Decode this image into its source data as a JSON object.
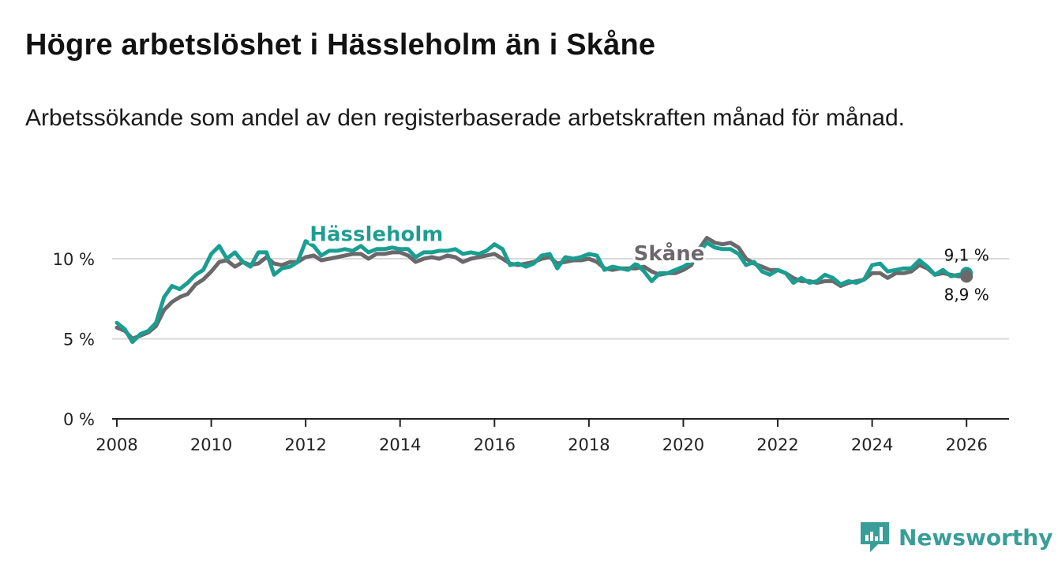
{
  "title": "Högre arbetslöshet i Hässleholm än i Skåne",
  "subtitle": "Arbetssökande som andel av den registerbaserade arbetskraften månad för månad.",
  "brand": {
    "name": "Newsworthy",
    "icon": "newsworthy-logo-icon",
    "color": "#3a9e98"
  },
  "chart_data": {
    "type": "line",
    "title": "Högre arbetslöshet i Hässleholm än i Skåne",
    "xlabel": "",
    "ylabel": "",
    "xlim": [
      2007.9,
      2026.9
    ],
    "ylim": [
      0,
      10
    ],
    "grid": true,
    "x_ticks": [
      2008,
      2010,
      2012,
      2014,
      2016,
      2018,
      2020,
      2022,
      2024,
      2026
    ],
    "x_tick_labels": [
      "2008",
      "2010",
      "2012",
      "2014",
      "2016",
      "2018",
      "2020",
      "2022",
      "2024",
      "2026"
    ],
    "y_ticks": [
      0,
      5,
      10
    ],
    "y_tick_labels": [
      "0 %",
      "5 %",
      "10 %"
    ],
    "series": [
      {
        "name": "Skåne",
        "color": "#6b686b",
        "end_label": "8,9 %",
        "points": [
          [
            2008.0,
            5.7
          ],
          [
            2008.17,
            5.5
          ],
          [
            2008.33,
            5.0
          ],
          [
            2008.5,
            5.2
          ],
          [
            2008.67,
            5.4
          ],
          [
            2008.83,
            5.8
          ],
          [
            2009.0,
            6.8
          ],
          [
            2009.17,
            7.3
          ],
          [
            2009.33,
            7.6
          ],
          [
            2009.5,
            7.8
          ],
          [
            2009.67,
            8.4
          ],
          [
            2009.83,
            8.7
          ],
          [
            2010.0,
            9.2
          ],
          [
            2010.17,
            9.8
          ],
          [
            2010.33,
            9.9
          ],
          [
            2010.5,
            9.5
          ],
          [
            2010.67,
            9.8
          ],
          [
            2010.83,
            9.6
          ],
          [
            2011.0,
            9.7
          ],
          [
            2011.17,
            10.1
          ],
          [
            2011.33,
            9.7
          ],
          [
            2011.5,
            9.6
          ],
          [
            2011.67,
            9.8
          ],
          [
            2011.83,
            9.8
          ],
          [
            2012.0,
            10.1
          ],
          [
            2012.17,
            10.2
          ],
          [
            2012.33,
            9.9
          ],
          [
            2012.5,
            10.0
          ],
          [
            2012.67,
            10.1
          ],
          [
            2012.83,
            10.2
          ],
          [
            2013.0,
            10.3
          ],
          [
            2013.17,
            10.3
          ],
          [
            2013.33,
            10.0
          ],
          [
            2013.5,
            10.3
          ],
          [
            2013.67,
            10.3
          ],
          [
            2013.83,
            10.4
          ],
          [
            2014.0,
            10.4
          ],
          [
            2014.17,
            10.2
          ],
          [
            2014.33,
            9.8
          ],
          [
            2014.5,
            10.0
          ],
          [
            2014.67,
            10.1
          ],
          [
            2014.83,
            10.0
          ],
          [
            2015.0,
            10.2
          ],
          [
            2015.17,
            10.1
          ],
          [
            2015.33,
            9.8
          ],
          [
            2015.5,
            10.0
          ],
          [
            2015.67,
            10.1
          ],
          [
            2015.83,
            10.2
          ],
          [
            2016.0,
            10.3
          ],
          [
            2016.17,
            10.0
          ],
          [
            2016.33,
            9.7
          ],
          [
            2016.5,
            9.6
          ],
          [
            2016.67,
            9.7
          ],
          [
            2016.83,
            9.8
          ],
          [
            2017.0,
            10.0
          ],
          [
            2017.17,
            10.1
          ],
          [
            2017.33,
            9.7
          ],
          [
            2017.5,
            9.8
          ],
          [
            2017.67,
            9.9
          ],
          [
            2017.83,
            9.9
          ],
          [
            2018.0,
            10.0
          ],
          [
            2018.17,
            9.8
          ],
          [
            2018.33,
            9.4
          ],
          [
            2018.5,
            9.3
          ],
          [
            2018.67,
            9.4
          ],
          [
            2018.83,
            9.4
          ],
          [
            2019.0,
            9.4
          ],
          [
            2019.17,
            9.5
          ],
          [
            2019.33,
            9.2
          ],
          [
            2019.5,
            9.0
          ],
          [
            2019.67,
            9.1
          ],
          [
            2019.83,
            9.1
          ],
          [
            2020.0,
            9.3
          ],
          [
            2020.17,
            9.6
          ],
          [
            2020.33,
            10.6
          ],
          [
            2020.5,
            11.3
          ],
          [
            2020.67,
            11.0
          ],
          [
            2020.83,
            10.9
          ],
          [
            2021.0,
            11.0
          ],
          [
            2021.17,
            10.7
          ],
          [
            2021.33,
            10.0
          ],
          [
            2021.5,
            9.7
          ],
          [
            2021.67,
            9.5
          ],
          [
            2021.83,
            9.3
          ],
          [
            2022.0,
            9.3
          ],
          [
            2022.17,
            9.1
          ],
          [
            2022.33,
            8.8
          ],
          [
            2022.5,
            8.6
          ],
          [
            2022.67,
            8.6
          ],
          [
            2022.83,
            8.5
          ],
          [
            2023.0,
            8.6
          ],
          [
            2023.17,
            8.6
          ],
          [
            2023.33,
            8.3
          ],
          [
            2023.5,
            8.5
          ],
          [
            2023.67,
            8.6
          ],
          [
            2023.83,
            8.7
          ],
          [
            2024.0,
            9.1
          ],
          [
            2024.17,
            9.1
          ],
          [
            2024.33,
            8.8
          ],
          [
            2024.5,
            9.1
          ],
          [
            2024.67,
            9.1
          ],
          [
            2024.83,
            9.2
          ],
          [
            2025.0,
            9.6
          ],
          [
            2025.17,
            9.4
          ],
          [
            2025.33,
            9.0
          ],
          [
            2025.5,
            9.1
          ],
          [
            2025.67,
            9.0
          ],
          [
            2025.83,
            8.9
          ],
          [
            2026.0,
            8.9
          ]
        ]
      },
      {
        "name": "Hässleholm",
        "color": "#1a9e91",
        "end_label": "9,1 %",
        "points": [
          [
            2008.0,
            6.0
          ],
          [
            2008.17,
            5.6
          ],
          [
            2008.33,
            4.8
          ],
          [
            2008.5,
            5.3
          ],
          [
            2008.67,
            5.5
          ],
          [
            2008.83,
            6.0
          ],
          [
            2009.0,
            7.6
          ],
          [
            2009.17,
            8.3
          ],
          [
            2009.33,
            8.1
          ],
          [
            2009.5,
            8.5
          ],
          [
            2009.67,
            9.0
          ],
          [
            2009.83,
            9.3
          ],
          [
            2010.0,
            10.3
          ],
          [
            2010.17,
            10.8
          ],
          [
            2010.33,
            10.0
          ],
          [
            2010.5,
            10.4
          ],
          [
            2010.67,
            9.8
          ],
          [
            2010.83,
            9.5
          ],
          [
            2011.0,
            10.4
          ],
          [
            2011.17,
            10.4
          ],
          [
            2011.33,
            9.0
          ],
          [
            2011.5,
            9.4
          ],
          [
            2011.67,
            9.5
          ],
          [
            2011.83,
            9.8
          ],
          [
            2012.0,
            11.1
          ],
          [
            2012.17,
            10.8
          ],
          [
            2012.33,
            10.2
          ],
          [
            2012.5,
            10.5
          ],
          [
            2012.67,
            10.5
          ],
          [
            2012.83,
            10.6
          ],
          [
            2013.0,
            10.5
          ],
          [
            2013.17,
            10.8
          ],
          [
            2013.33,
            10.4
          ],
          [
            2013.5,
            10.6
          ],
          [
            2013.67,
            10.6
          ],
          [
            2013.83,
            10.7
          ],
          [
            2014.0,
            10.6
          ],
          [
            2014.17,
            10.6
          ],
          [
            2014.33,
            10.1
          ],
          [
            2014.5,
            10.4
          ],
          [
            2014.67,
            10.4
          ],
          [
            2014.83,
            10.5
          ],
          [
            2015.0,
            10.5
          ],
          [
            2015.17,
            10.6
          ],
          [
            2015.33,
            10.3
          ],
          [
            2015.5,
            10.4
          ],
          [
            2015.67,
            10.3
          ],
          [
            2015.83,
            10.5
          ],
          [
            2016.0,
            10.9
          ],
          [
            2016.17,
            10.6
          ],
          [
            2016.33,
            9.6
          ],
          [
            2016.5,
            9.7
          ],
          [
            2016.67,
            9.5
          ],
          [
            2016.83,
            9.7
          ],
          [
            2017.0,
            10.2
          ],
          [
            2017.17,
            10.3
          ],
          [
            2017.33,
            9.4
          ],
          [
            2017.5,
            10.1
          ],
          [
            2017.67,
            10.0
          ],
          [
            2017.83,
            10.1
          ],
          [
            2018.0,
            10.3
          ],
          [
            2018.17,
            10.2
          ],
          [
            2018.33,
            9.3
          ],
          [
            2018.5,
            9.5
          ],
          [
            2018.67,
            9.4
          ],
          [
            2018.83,
            9.3
          ],
          [
            2019.0,
            9.7
          ],
          [
            2019.17,
            9.2
          ],
          [
            2019.33,
            8.6
          ],
          [
            2019.5,
            9.1
          ],
          [
            2019.67,
            9.1
          ],
          [
            2019.83,
            9.3
          ],
          [
            2020.0,
            9.5
          ],
          [
            2020.17,
            9.8
          ],
          [
            2020.33,
            10.4
          ],
          [
            2020.5,
            11.0
          ],
          [
            2020.67,
            10.7
          ],
          [
            2020.83,
            10.6
          ],
          [
            2021.0,
            10.6
          ],
          [
            2021.17,
            10.3
          ],
          [
            2021.33,
            9.6
          ],
          [
            2021.5,
            9.8
          ],
          [
            2021.67,
            9.2
          ],
          [
            2021.83,
            9.0
          ],
          [
            2022.0,
            9.3
          ],
          [
            2022.17,
            9.1
          ],
          [
            2022.33,
            8.5
          ],
          [
            2022.5,
            8.8
          ],
          [
            2022.67,
            8.5
          ],
          [
            2022.83,
            8.6
          ],
          [
            2023.0,
            9.0
          ],
          [
            2023.17,
            8.8
          ],
          [
            2023.33,
            8.4
          ],
          [
            2023.5,
            8.6
          ],
          [
            2023.67,
            8.5
          ],
          [
            2023.83,
            8.7
          ],
          [
            2024.0,
            9.6
          ],
          [
            2024.17,
            9.7
          ],
          [
            2024.33,
            9.2
          ],
          [
            2024.5,
            9.3
          ],
          [
            2024.67,
            9.4
          ],
          [
            2024.83,
            9.4
          ],
          [
            2025.0,
            9.9
          ],
          [
            2025.17,
            9.5
          ],
          [
            2025.33,
            9.0
          ],
          [
            2025.5,
            9.3
          ],
          [
            2025.67,
            8.9
          ],
          [
            2025.83,
            9.0
          ],
          [
            2026.0,
            9.1
          ]
        ]
      }
    ],
    "annotations": [
      {
        "series": "Hässleholm",
        "text": "Hässleholm",
        "at_x": 2013.5,
        "at_y": 11.1
      },
      {
        "series": "Skåne",
        "text": "Skåne",
        "at_x": 2019.7,
        "at_y": 9.9
      }
    ]
  }
}
